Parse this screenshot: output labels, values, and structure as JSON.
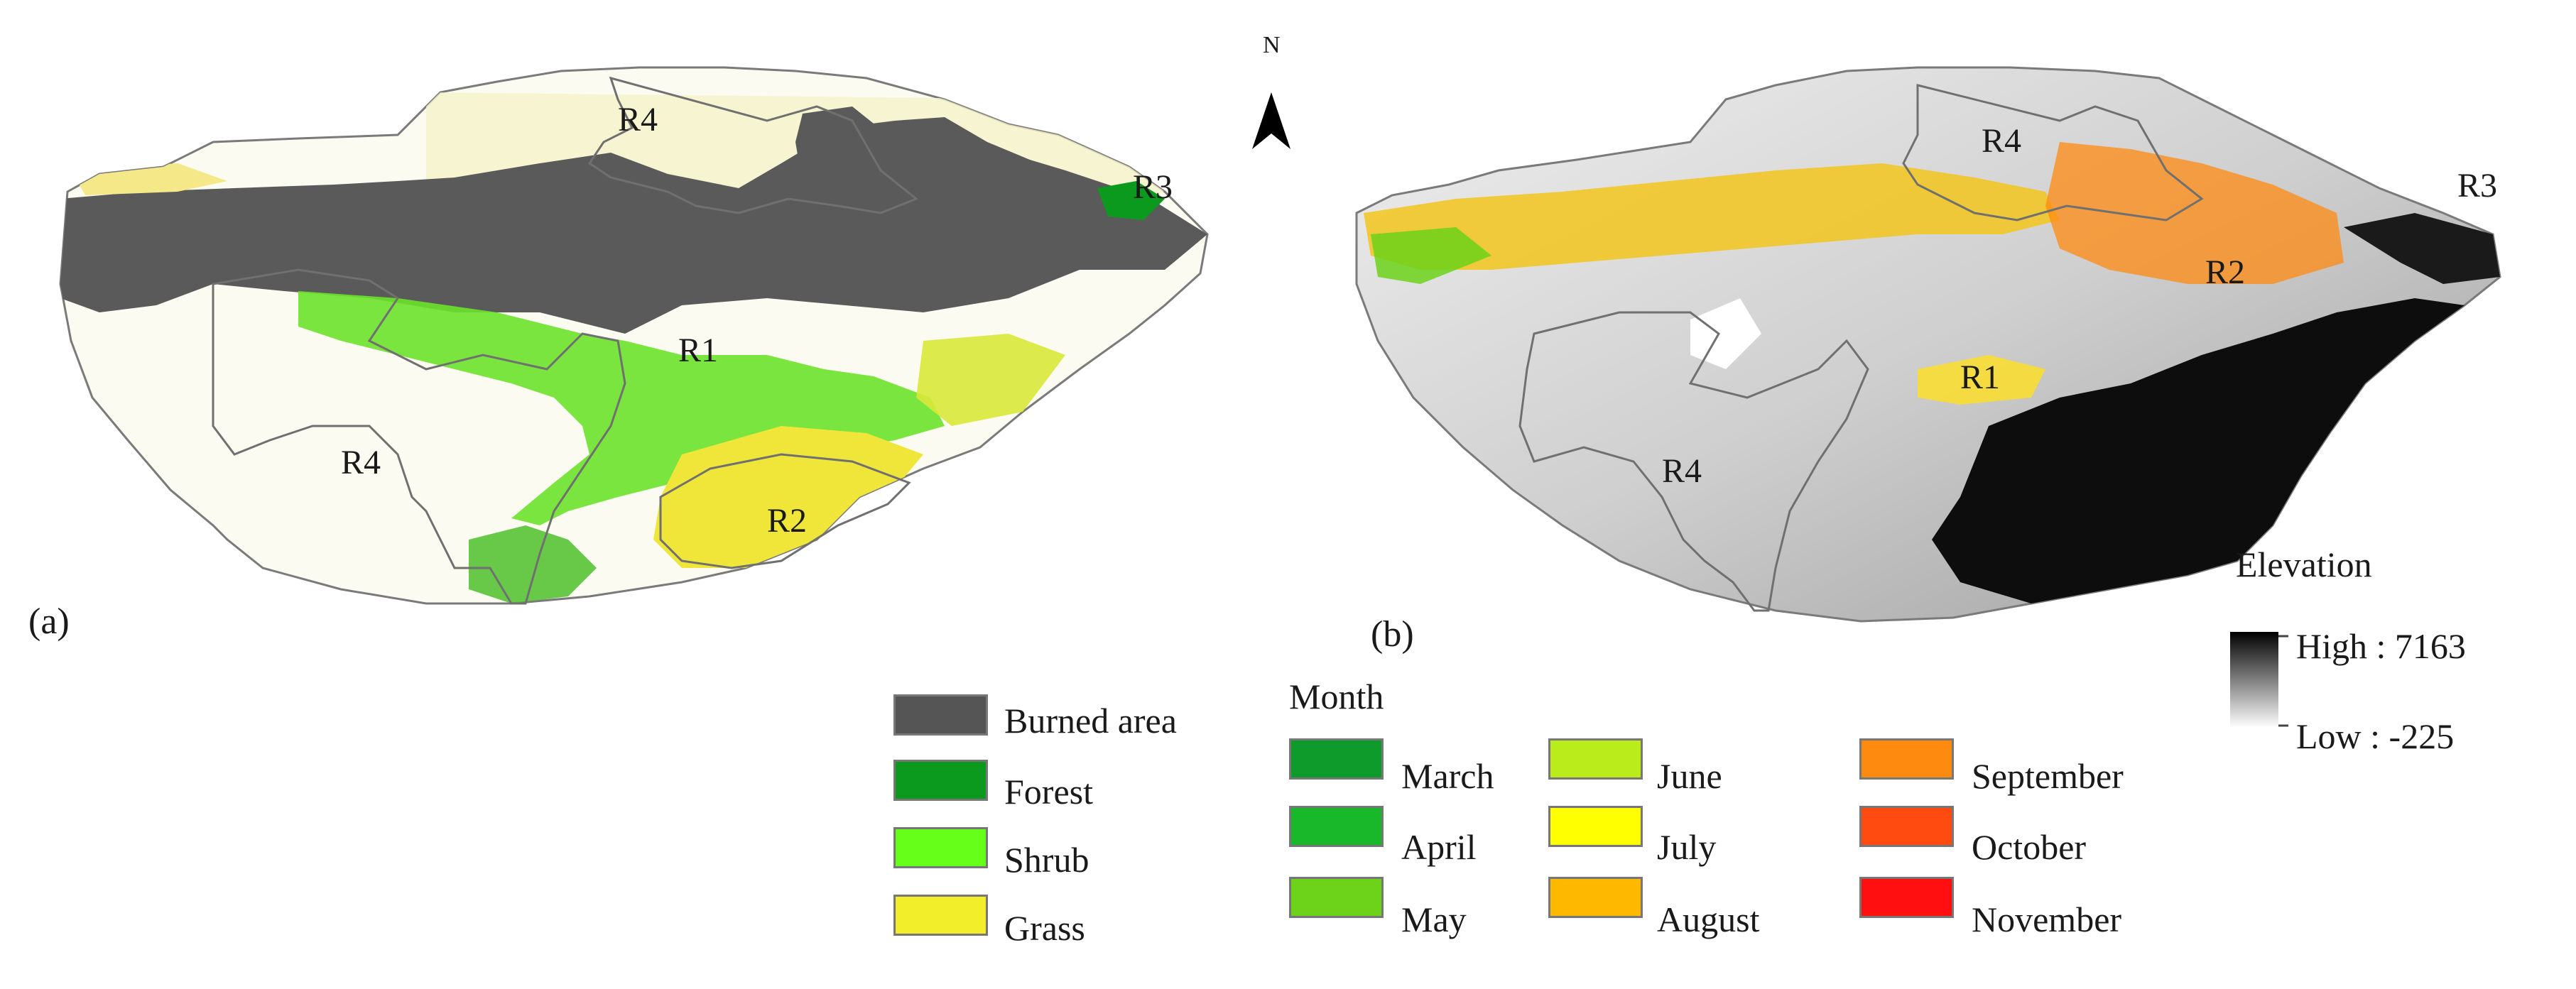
{
  "panels": [
    {
      "label": "(a)"
    },
    {
      "label": "(b)"
    }
  ],
  "north_arrow": {
    "letter": "N",
    "icon": "north-arrow-icon"
  },
  "panel_a": {
    "region_labels": [
      "R4",
      "R3",
      "R1",
      "R4",
      "R2"
    ]
  },
  "panel_b": {
    "region_labels": [
      "R4",
      "R3",
      "R2",
      "R1",
      "R4"
    ]
  },
  "legend_landcover": {
    "items": [
      {
        "label": "Burned area",
        "color": "#555555"
      },
      {
        "label": "Forest",
        "color": "#0b9a1e"
      },
      {
        "label": "Shrub",
        "color": "#66ff1a"
      },
      {
        "label": "Grass",
        "color": "#f2ef2a"
      }
    ]
  },
  "legend_month": {
    "title": "Month",
    "items": [
      {
        "label": "March",
        "color": "#0f9a2c"
      },
      {
        "label": "April",
        "color": "#18b82a"
      },
      {
        "label": "May",
        "color": "#6cd21a"
      },
      {
        "label": "June",
        "color": "#b9ec1a"
      },
      {
        "label": "July",
        "color": "#ffff00"
      },
      {
        "label": "August",
        "color": "#ffb800"
      },
      {
        "label": "September",
        "color": "#ff8a10"
      },
      {
        "label": "October",
        "color": "#ff4a10"
      },
      {
        "label": "November",
        "color": "#ff0f0f"
      }
    ]
  },
  "legend_elevation": {
    "title": "Elevation",
    "high": "High : 7163",
    "low": "Low : -225",
    "color_high": "#000000",
    "color_low": "#ffffff"
  }
}
